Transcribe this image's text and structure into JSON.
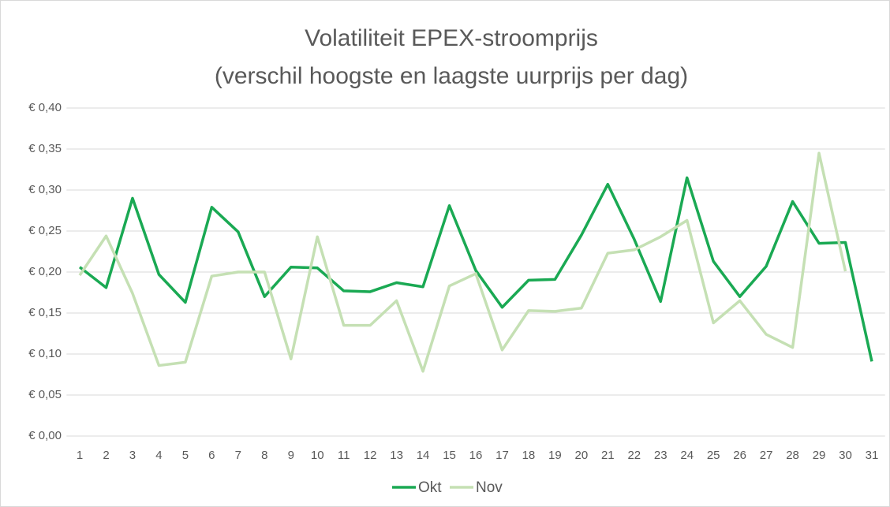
{
  "chart_data": {
    "type": "line",
    "title": [
      "Volatiliteit EPEX-stroomprijs",
      "(verschil hoogste en laagste uurprijs per dag)"
    ],
    "categories": [
      "1",
      "2",
      "3",
      "4",
      "5",
      "6",
      "7",
      "8",
      "9",
      "10",
      "11",
      "12",
      "13",
      "14",
      "15",
      "16",
      "17",
      "18",
      "19",
      "20",
      "21",
      "22",
      "23",
      "24",
      "25",
      "26",
      "27",
      "28",
      "29",
      "30",
      "31"
    ],
    "series": [
      {
        "name": "Okt",
        "color": "#1aa953",
        "values": [
          0.206,
          0.181,
          0.29,
          0.197,
          0.163,
          0.279,
          0.249,
          0.17,
          0.206,
          0.205,
          0.177,
          0.176,
          0.187,
          0.182,
          0.281,
          0.202,
          0.157,
          0.19,
          0.191,
          0.245,
          0.307,
          0.24,
          0.164,
          0.315,
          0.213,
          0.17,
          0.207,
          0.286,
          0.235,
          0.236,
          0.091
        ]
      },
      {
        "name": "Nov",
        "color": "#c5e0b4",
        "values": [
          0.196,
          0.244,
          0.174,
          0.086,
          0.09,
          0.195,
          0.2,
          0.2,
          0.094,
          0.243,
          0.135,
          0.135,
          0.165,
          0.079,
          0.183,
          0.198,
          0.105,
          0.153,
          0.152,
          0.156,
          0.223,
          0.227,
          0.243,
          0.263,
          0.138,
          0.165,
          0.124,
          0.108,
          0.345,
          0.201,
          null
        ]
      }
    ],
    "ylim": [
      0,
      0.4
    ],
    "yticks": [
      {
        "value": 0,
        "label": "€ 0,00"
      },
      {
        "value": 0.05,
        "label": "€ 0,05"
      },
      {
        "value": 0.1,
        "label": "€ 0,10"
      },
      {
        "value": 0.15,
        "label": "€ 0,15"
      },
      {
        "value": 0.2,
        "label": "€ 0,20"
      },
      {
        "value": 0.25,
        "label": "€ 0,25"
      },
      {
        "value": 0.3,
        "label": "€ 0,30"
      },
      {
        "value": 0.35,
        "label": "€ 0,35"
      },
      {
        "value": 0.4,
        "label": "€ 0,40"
      }
    ],
    "grid": true,
    "legend": "bottom"
  }
}
